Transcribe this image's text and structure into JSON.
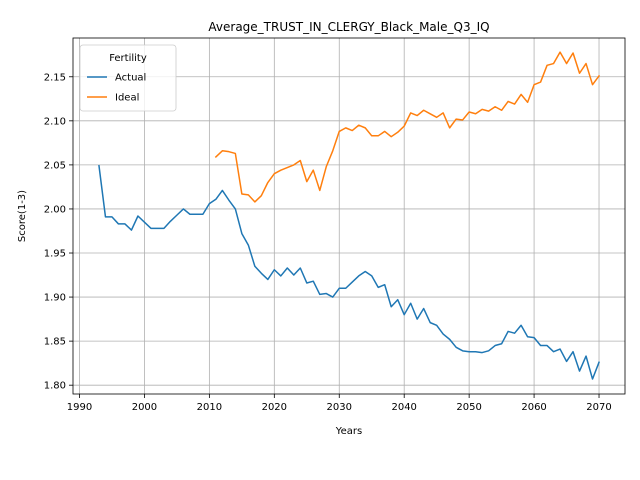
{
  "chart_data": {
    "type": "line",
    "title": "Average_TRUST_IN_CLERGY_Black_Male_Q3_IQ",
    "xlabel": "Years",
    "ylabel": "Score(1-3)",
    "xlim": [
      1989,
      2074
    ],
    "ylim": [
      1.79,
      2.194
    ],
    "xticks": [
      1990,
      2000,
      2010,
      2020,
      2030,
      2040,
      2050,
      2060,
      2070
    ],
    "yticks": [
      1.8,
      1.85,
      1.9,
      1.95,
      2.0,
      2.05,
      2.1,
      2.15
    ],
    "yticks_labels": [
      "1.80",
      "1.85",
      "1.90",
      "1.95",
      "2.00",
      "2.05",
      "2.10",
      "2.15"
    ],
    "grid": true,
    "legend": {
      "title": "Fertility",
      "position": "top-left"
    },
    "series": [
      {
        "name": "Actual",
        "color": "#1f77b4",
        "x": [
          1993,
          1994,
          1995,
          1996,
          1997,
          1998,
          1999,
          2000,
          2001,
          2002,
          2003,
          2004,
          2005,
          2006,
          2007,
          2008,
          2009,
          2010,
          2011,
          2012,
          2013,
          2014,
          2015,
          2016,
          2017,
          2018,
          2019,
          2020,
          2021,
          2022,
          2023,
          2024,
          2025,
          2026,
          2027,
          2028,
          2029,
          2030,
          2031,
          2032,
          2033,
          2034,
          2035,
          2036,
          2037,
          2038,
          2039,
          2040,
          2041,
          2042,
          2043,
          2044,
          2045,
          2046,
          2047,
          2048,
          2049,
          2050,
          2051,
          2052,
          2053,
          2054,
          2055,
          2056,
          2057,
          2058,
          2059,
          2060,
          2061,
          2062,
          2063,
          2064,
          2065,
          2066,
          2067,
          2068,
          2069,
          2070
        ],
        "y": [
          2.049,
          1.991,
          1.991,
          1.983,
          1.983,
          1.976,
          1.992,
          1.985,
          1.978,
          1.978,
          1.978,
          1.986,
          1.993,
          2.0,
          1.994,
          1.994,
          1.994,
          2.006,
          2.011,
          2.021,
          2.01,
          2.0,
          1.972,
          1.959,
          1.935,
          1.927,
          1.92,
          1.931,
          1.924,
          1.933,
          1.925,
          1.933,
          1.916,
          1.918,
          1.903,
          1.904,
          1.9,
          1.91,
          1.91,
          1.917,
          1.924,
          1.929,
          1.924,
          1.911,
          1.914,
          1.889,
          1.897,
          1.88,
          1.893,
          1.875,
          1.887,
          1.871,
          1.868,
          1.858,
          1.852,
          1.843,
          1.839,
          1.838,
          1.838,
          1.837,
          1.839,
          1.845,
          1.847,
          1.861,
          1.859,
          1.868,
          1.855,
          1.854,
          1.845,
          1.845,
          1.838,
          1.841,
          1.827,
          1.838,
          1.816,
          1.833,
          1.807,
          1.826
        ]
      },
      {
        "name": "Ideal",
        "color": "#ff7f0e",
        "x": [
          2011,
          2012,
          2013,
          2014,
          2015,
          2016,
          2017,
          2018,
          2019,
          2020,
          2021,
          2022,
          2023,
          2024,
          2025,
          2026,
          2027,
          2028,
          2029,
          2030,
          2031,
          2032,
          2033,
          2034,
          2035,
          2036,
          2037,
          2038,
          2039,
          2040,
          2041,
          2042,
          2043,
          2044,
          2045,
          2046,
          2047,
          2048,
          2049,
          2050,
          2051,
          2052,
          2053,
          2054,
          2055,
          2056,
          2057,
          2058,
          2059,
          2060,
          2061,
          2062,
          2063,
          2064,
          2065,
          2066,
          2067,
          2068,
          2069,
          2070
        ],
        "y": [
          2.059,
          2.066,
          2.065,
          2.063,
          2.017,
          2.016,
          2.008,
          2.015,
          2.03,
          2.04,
          2.044,
          2.047,
          2.05,
          2.055,
          2.031,
          2.044,
          2.021,
          2.048,
          2.066,
          2.088,
          2.092,
          2.089,
          2.095,
          2.092,
          2.083,
          2.083,
          2.088,
          2.082,
          2.087,
          2.094,
          2.109,
          2.106,
          2.112,
          2.108,
          2.104,
          2.109,
          2.092,
          2.102,
          2.101,
          2.11,
          2.108,
          2.113,
          2.111,
          2.116,
          2.112,
          2.122,
          2.119,
          2.13,
          2.121,
          2.141,
          2.144,
          2.163,
          2.165,
          2.178,
          2.165,
          2.177,
          2.154,
          2.165,
          2.141,
          2.151
        ]
      }
    ]
  }
}
